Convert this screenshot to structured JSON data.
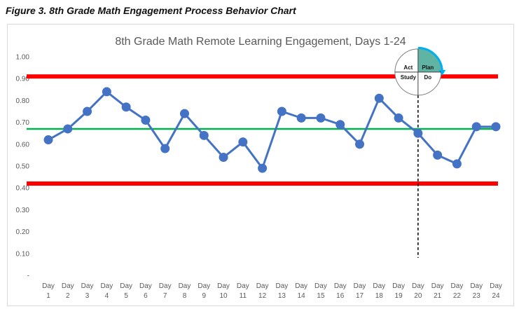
{
  "figure_caption": "Figure 3. 8th Grade Math Engagement Process Behavior Chart",
  "chart_data": {
    "type": "line",
    "title": "8th Grade Math Remote Learning Engagement, Days 1-24",
    "xlabel": "",
    "ylabel": "",
    "categories": [
      "Day 1",
      "Day 2",
      "Day 3",
      "Day 4",
      "Day 5",
      "Day 6",
      "Day 7",
      "Day 8",
      "Day 9",
      "Day 10",
      "Day 11",
      "Day 12",
      "Day 13",
      "Day 14",
      "Day 15",
      "Day 16",
      "Day 17",
      "Day 18",
      "Day 19",
      "Day 20",
      "Day 21",
      "Day 22",
      "Day 23",
      "Day 24"
    ],
    "tick_label_top": [
      "Day",
      "Day",
      "Day",
      "Day",
      "Day",
      "Day",
      "Day",
      "Day",
      "Day",
      "Day",
      "Day",
      "Day",
      "Day",
      "Day",
      "Day",
      "Day",
      "Day",
      "Day",
      "Day",
      "Day",
      "Day",
      "Day",
      "Day",
      "Day"
    ],
    "tick_label_bottom": [
      "1",
      "2",
      "3",
      "4",
      "5",
      "6",
      "7",
      "8",
      "9",
      "10",
      "11",
      "12",
      "13",
      "14",
      "15",
      "16",
      "17",
      "18",
      "19",
      "20",
      "21",
      "22",
      "23",
      "24"
    ],
    "series": [
      {
        "values": [
          0.62,
          0.67,
          0.75,
          0.84,
          0.77,
          0.71,
          0.58,
          0.74,
          0.64,
          0.54,
          0.61,
          0.49,
          0.75,
          0.72,
          0.72,
          0.69,
          0.6,
          0.81,
          0.72,
          0.65,
          0.55,
          0.51,
          0.68,
          0.68
        ],
        "color": "#4472c4"
      }
    ],
    "yticks": [
      "-",
      "0.10",
      "0.20",
      "0.30",
      "0.40",
      "0.50",
      "0.60",
      "0.70",
      "0.80",
      "0.90",
      "1.00"
    ],
    "ytick_values": [
      0,
      0.1,
      0.2,
      0.3,
      0.4,
      0.5,
      0.6,
      0.7,
      0.8,
      0.9,
      1.0
    ],
    "ylim": [
      0,
      1.0
    ],
    "grid": false,
    "legend": "none",
    "upper_limit": {
      "value": 0.91,
      "color": "#ff0000"
    },
    "lower_limit": {
      "value": 0.42,
      "color": "#ff0000"
    },
    "center_line": {
      "value": 0.67,
      "color": "#00b050"
    },
    "intervention_marker": {
      "at_category": "Day 20",
      "style": "dashed",
      "color": "#000000",
      "from_value": 0.08
    },
    "pdsa_cycle": {
      "at_category": "Day 20",
      "center_value": 0.93,
      "quadrants": [
        "Act",
        "Plan",
        "Study",
        "Do"
      ],
      "highlighted": "Plan",
      "highlight_color": "#5fb4a3",
      "arrow_color": "#00b0f0"
    }
  }
}
